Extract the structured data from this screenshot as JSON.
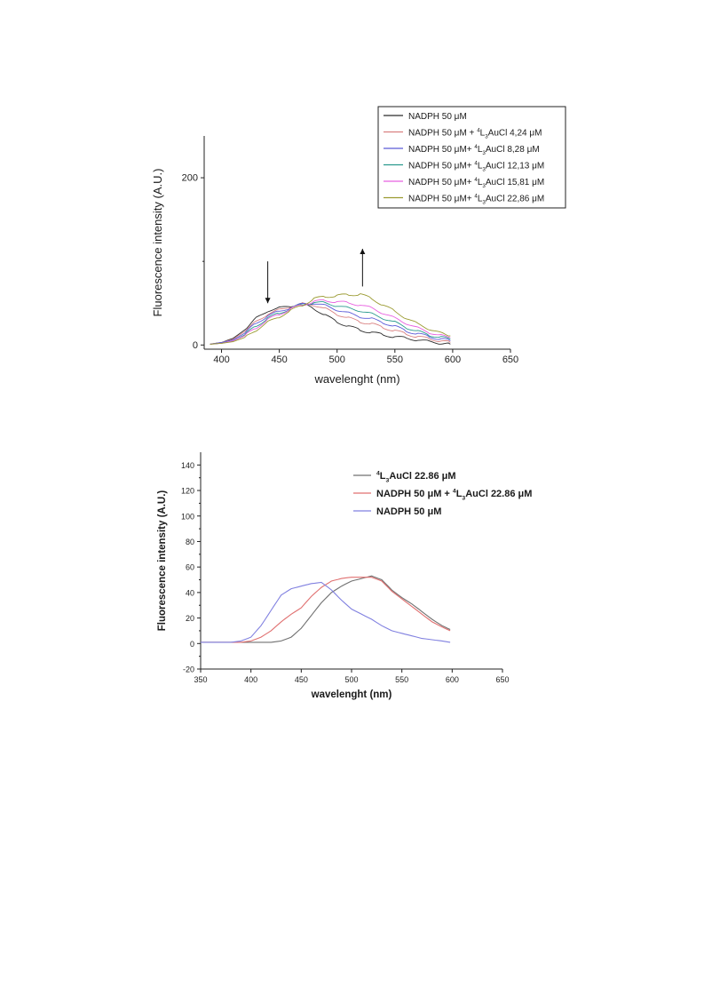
{
  "chart_data": [
    {
      "type": "line",
      "title": "",
      "xlabel": "wavelenght (nm)",
      "ylabel": "Fluorescence intensity (A.U.)",
      "xlim": [
        385,
        650
      ],
      "ylim": [
        -5,
        250
      ],
      "xticks": [
        400,
        450,
        500,
        550,
        600,
        650
      ],
      "yticks": [
        0,
        200
      ],
      "legend_position": "top-right",
      "series": [
        {
          "name": "NADPH 50 μM",
          "color": "#2b2b2b",
          "x": [
            390,
            400,
            410,
            420,
            430,
            440,
            450,
            460,
            470,
            480,
            490,
            500,
            510,
            520,
            530,
            540,
            550,
            560,
            570,
            580,
            590,
            598
          ],
          "y": [
            1,
            3,
            8,
            18,
            32,
            41,
            44,
            47,
            49,
            44,
            35,
            28,
            22,
            18,
            15,
            12,
            10,
            8,
            6,
            4,
            2,
            1
          ]
        },
        {
          "name": "NADPH 50 μM + 4L3AuCl 4,24 μM",
          "color": "#d98080",
          "x": [
            390,
            400,
            410,
            420,
            430,
            440,
            450,
            460,
            470,
            480,
            490,
            500,
            510,
            520,
            530,
            540,
            550,
            560,
            570,
            580,
            590,
            598
          ],
          "y": [
            1,
            3,
            7,
            16,
            28,
            37,
            42,
            46,
            49,
            48,
            43,
            37,
            32,
            28,
            25,
            21,
            17,
            13,
            10,
            7,
            5,
            3
          ]
        },
        {
          "name": "NADPH 50 μM+ 4L3AuCl 8,28 μM",
          "color": "#5a5ad8",
          "x": [
            390,
            400,
            410,
            420,
            430,
            440,
            450,
            460,
            470,
            480,
            490,
            500,
            510,
            520,
            530,
            540,
            550,
            560,
            570,
            580,
            590,
            598
          ],
          "y": [
            1,
            3,
            6,
            14,
            26,
            35,
            40,
            45,
            49,
            50,
            47,
            42,
            38,
            34,
            31,
            27,
            22,
            17,
            13,
            10,
            7,
            5
          ]
        },
        {
          "name": "NADPH 50 μM+ 4L3AuCl 12,13 μM",
          "color": "#2a9a8e",
          "x": [
            390,
            400,
            410,
            420,
            430,
            440,
            450,
            460,
            470,
            480,
            490,
            500,
            510,
            520,
            530,
            540,
            550,
            560,
            570,
            580,
            590,
            598
          ],
          "y": [
            1,
            2,
            5,
            12,
            23,
            32,
            38,
            44,
            48,
            51,
            50,
            47,
            44,
            41,
            37,
            32,
            27,
            21,
            16,
            12,
            9,
            7
          ]
        },
        {
          "name": "NADPH 50 μM+ 4L3AuCl 15,81 μM",
          "color": "#e860e0",
          "x": [
            390,
            400,
            410,
            420,
            430,
            440,
            450,
            460,
            470,
            480,
            490,
            500,
            510,
            520,
            530,
            540,
            550,
            560,
            570,
            580,
            590,
            598
          ],
          "y": [
            1,
            2,
            5,
            11,
            21,
            30,
            37,
            43,
            48,
            52,
            53,
            52,
            50,
            48,
            44,
            38,
            32,
            26,
            20,
            15,
            11,
            9
          ]
        },
        {
          "name": "NADPH 50 μM+ 4L3AuCl 22,86 μM",
          "color": "#9a9a30",
          "x": [
            390,
            400,
            410,
            420,
            430,
            440,
            450,
            460,
            470,
            480,
            490,
            500,
            510,
            520,
            530,
            540,
            550,
            560,
            570,
            580,
            590,
            598
          ],
          "y": [
            1,
            2,
            4,
            9,
            18,
            27,
            34,
            41,
            48,
            55,
            58,
            59,
            60,
            61,
            55,
            48,
            40,
            32,
            25,
            19,
            14,
            11
          ]
        }
      ],
      "annotations": [
        {
          "type": "arrow",
          "direction": "down",
          "x": 440,
          "y_from": 100,
          "y_to": 50
        },
        {
          "type": "arrow",
          "direction": "up",
          "x": 522,
          "y_from": 70,
          "y_to": 115
        }
      ]
    },
    {
      "type": "line",
      "title": "",
      "xlabel": "wavelenght (nm)",
      "ylabel": "Fluorescence intensity (A.U.)",
      "xlim": [
        350,
        650
      ],
      "ylim": [
        -20,
        150
      ],
      "xticks": [
        350,
        400,
        450,
        500,
        550,
        600,
        650
      ],
      "yticks": [
        -20,
        0,
        20,
        40,
        60,
        80,
        100,
        120,
        140
      ],
      "legend_position": "top-right",
      "series": [
        {
          "name": "4L3AuCl 22.86 μM",
          "color": "#707070",
          "x": [
            350,
            360,
            370,
            380,
            390,
            400,
            410,
            420,
            430,
            440,
            450,
            460,
            470,
            480,
            490,
            500,
            510,
            520,
            530,
            540,
            550,
            560,
            570,
            580,
            590,
            598
          ],
          "y": [
            1,
            1,
            1,
            1,
            1,
            1,
            1,
            1,
            2,
            5,
            12,
            22,
            32,
            40,
            45,
            49,
            51,
            53,
            50,
            42,
            36,
            31,
            25,
            19,
            14,
            11
          ]
        },
        {
          "name": "NADPH 50 μM  + 4L3AuCl 22.86 μM",
          "color": "#e07070",
          "x": [
            350,
            360,
            370,
            380,
            390,
            400,
            410,
            420,
            430,
            440,
            450,
            460,
            470,
            480,
            490,
            500,
            510,
            520,
            530,
            540,
            550,
            560,
            570,
            580,
            590,
            598
          ],
          "y": [
            1,
            1,
            1,
            1,
            1,
            2,
            5,
            10,
            17,
            23,
            28,
            37,
            44,
            49,
            51,
            52,
            52,
            52,
            49,
            41,
            35,
            29,
            23,
            17,
            13,
            10
          ]
        },
        {
          "name": "NADPH 50 μM",
          "color": "#8080e0",
          "x": [
            350,
            360,
            370,
            380,
            390,
            400,
            410,
            420,
            430,
            440,
            450,
            460,
            470,
            480,
            490,
            500,
            510,
            520,
            530,
            540,
            550,
            560,
            570,
            580,
            590,
            598
          ],
          "y": [
            1,
            1,
            1,
            1,
            2,
            5,
            14,
            26,
            38,
            43,
            45,
            47,
            48,
            42,
            34,
            27,
            23,
            19,
            14,
            10,
            8,
            6,
            4,
            3,
            2,
            1
          ]
        }
      ]
    }
  ]
}
